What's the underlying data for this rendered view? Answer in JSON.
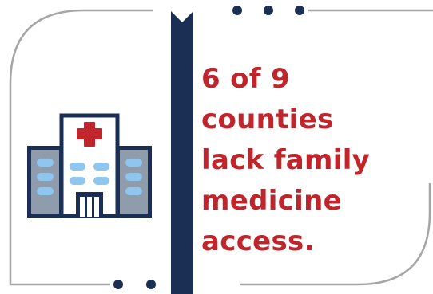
{
  "stat": {
    "lines": [
      "6 of 9",
      "counties",
      "lack family",
      "medicine",
      "access."
    ]
  },
  "colors": {
    "navy": "#1b2f55",
    "red": "#c0252b",
    "frame_gray": "#a6a6a6",
    "light_blue": "#8ec6ef",
    "wing_gray": "#8f9cac",
    "white": "#ffffff"
  },
  "icons": {
    "hospital": "hospital-building-icon",
    "cross": "medical-cross-icon"
  }
}
